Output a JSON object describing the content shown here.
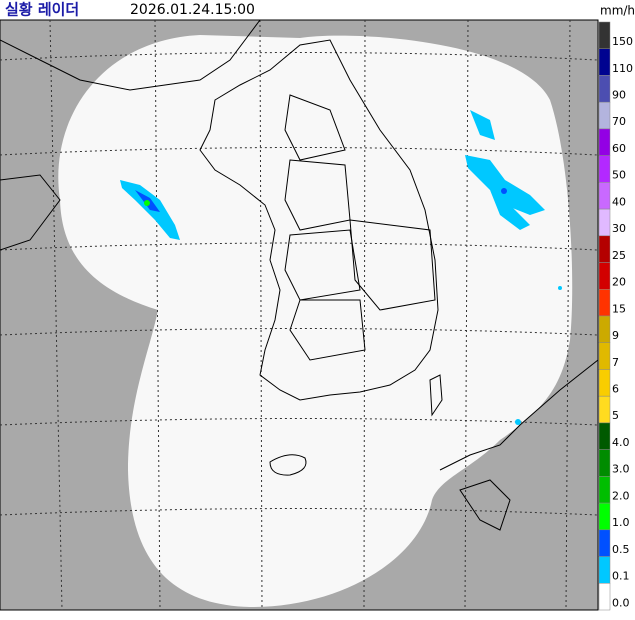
{
  "header": {
    "title": "실황 레이더",
    "time": "2026.01.24.15:00",
    "unit": "mm/h"
  },
  "legend": {
    "items": [
      {
        "label": "150",
        "color": "#333333"
      },
      {
        "label": "110",
        "color": "#000390"
      },
      {
        "label": "90",
        "color": "#4c4eb1"
      },
      {
        "label": "70",
        "color": "#b3b4de"
      },
      {
        "label": "60",
        "color": "#9300e4"
      },
      {
        "label": "50",
        "color": "#b329ff"
      },
      {
        "label": "40",
        "color": "#c969ff"
      },
      {
        "label": "30",
        "color": "#e0b9ff"
      },
      {
        "label": "25",
        "color": "#b40000"
      },
      {
        "label": "20",
        "color": "#d20000"
      },
      {
        "label": "15",
        "color": "#ff3300"
      },
      {
        "label": "9",
        "color": "#ccaa00"
      },
      {
        "label": "7",
        "color": "#e0b900"
      },
      {
        "label": "6",
        "color": "#f9cd00"
      },
      {
        "label": "5",
        "color": "#ffdc1f"
      },
      {
        "label": "4.0",
        "color": "#005a00"
      },
      {
        "label": "3.0",
        "color": "#008c00"
      },
      {
        "label": "2.0",
        "color": "#00be00"
      },
      {
        "label": "1.0",
        "color": "#00ff00"
      },
      {
        "label": "0.5",
        "color": "#0050ff"
      },
      {
        "label": "0.1",
        "color": "#00c8ff"
      },
      {
        "label": "0.0",
        "color": "#ffffff"
      }
    ]
  }
}
